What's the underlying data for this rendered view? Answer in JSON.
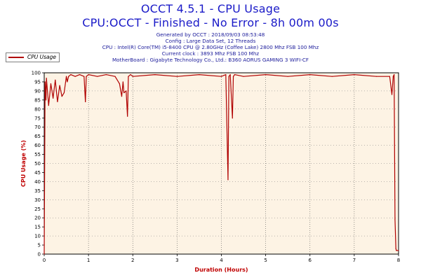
{
  "header": {
    "title": "OCCT 4.5.1 - CPU Usage",
    "subtitle": "CPU:OCCT - Finished - No Error - 8h 00m 00s",
    "info": [
      "Generated by OCCT : 2018/09/03 08:53:48",
      "Config : Large Data Set, 12 Threads",
      "CPU : Intel(R) Core(TM) i5-8400 CPU @ 2.80GHz (Coffee Lake) 2800 Mhz FSB 100 Mhz",
      "Current clock : 3893 Mhz FSB 100 Mhz",
      "MotherBoard : Gigabyte Technology Co., Ltd.: B360 AORUS GAMING 3 WIFI-CF"
    ]
  },
  "legend": {
    "label": "CPU Usage"
  },
  "colors": {
    "series": "#b00000",
    "plot_bg": "#fdf3e4",
    "title": "#1a1ac8",
    "axis_title": "#c00000"
  },
  "chart_data": {
    "type": "line",
    "xlabel": "Duration (Hours)",
    "ylabel": "CPU Usage (%)",
    "xlim": [
      0,
      8
    ],
    "ylim": [
      0,
      100
    ],
    "x_ticks": [
      "0",
      "1",
      "2",
      "3",
      "4",
      "5",
      "6",
      "7",
      "8"
    ],
    "y_ticks": [
      "0",
      "5",
      "10",
      "15",
      "20",
      "25",
      "30",
      "35",
      "40",
      "45",
      "50",
      "55",
      "60",
      "65",
      "70",
      "75",
      "80",
      "85",
      "90",
      "95",
      "100"
    ],
    "grid": true,
    "legend_position": "top-left",
    "series": [
      {
        "name": "CPU Usage",
        "x": [
          0,
          0.02,
          0.04,
          0.05,
          0.1,
          0.15,
          0.2,
          0.25,
          0.3,
          0.35,
          0.4,
          0.45,
          0.5,
          0.52,
          0.55,
          0.6,
          0.7,
          0.8,
          0.9,
          0.93,
          0.95,
          1.0,
          1.2,
          1.4,
          1.6,
          1.7,
          1.75,
          1.78,
          1.8,
          1.85,
          1.88,
          1.9,
          1.95,
          2.0,
          2.5,
          3.0,
          3.5,
          4.0,
          4.1,
          4.15,
          4.17,
          4.2,
          4.25,
          4.27,
          4.3,
          4.5,
          5.0,
          5.5,
          6.0,
          6.5,
          7.0,
          7.5,
          7.8,
          7.85,
          7.88,
          7.9,
          7.92,
          7.94,
          7.95,
          7.96,
          8.0
        ],
        "y": [
          0,
          95,
          85,
          97,
          82,
          94,
          86,
          96,
          84,
          93,
          87,
          89,
          98,
          95,
          98,
          99,
          98,
          99,
          98,
          84,
          98,
          99,
          98,
          99,
          98,
          94,
          87,
          95,
          89,
          90,
          76,
          98,
          99,
          98,
          99,
          98,
          99,
          98,
          99,
          41,
          98,
          99,
          75,
          98,
          99,
          98,
          99,
          98,
          99,
          98,
          99,
          98,
          98,
          88,
          98,
          99,
          19,
          3,
          2,
          2,
          2
        ]
      }
    ]
  }
}
